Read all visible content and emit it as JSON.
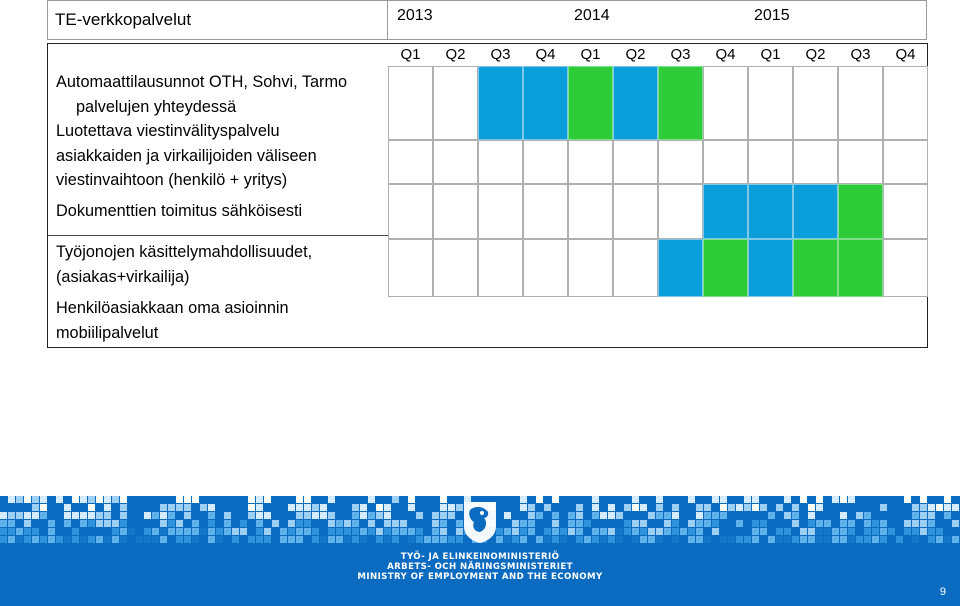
{
  "title": "TE-verkkopalvelut",
  "years": [
    "2013",
    "2014",
    "2015"
  ],
  "quarters": [
    "Q1",
    "Q2",
    "Q3",
    "Q4",
    "Q1",
    "Q2",
    "Q3",
    "Q4",
    "Q1",
    "Q2",
    "Q3",
    "Q4"
  ],
  "tasks": [
    {
      "lines": [
        "Automaattilausunnot OTH, Sohvi, Tarmo",
        "palvelujen yhteydessä",
        "Luotettava viestinvälityspalvelu",
        "asiakkaiden ja virkailijoiden väliseen",
        "viestinvaihtoon (henkilö + yritys)"
      ],
      "cells": [
        "",
        "",
        "blue",
        "blue",
        "green",
        "blue",
        "green",
        "",
        "",
        "",
        "",
        ""
      ]
    },
    {
      "lines": [
        "Dokumenttien toimitus sähköisesti"
      ],
      "cells": [
        "",
        "",
        "",
        "",
        "",
        "",
        "",
        "",
        "",
        "",
        "",
        ""
      ]
    },
    {
      "lines": [
        "Työjonojen käsittelymahdollisuudet,",
        "(asiakas+virkailija)"
      ],
      "cells": [
        "",
        "",
        "",
        "",
        "",
        "",
        "",
        "blue",
        "blue",
        "blue",
        "green",
        ""
      ]
    },
    {
      "lines": [
        "Henkilöasiakkaan oma asioinnin",
        "mobiilipalvelut"
      ],
      "cells": [
        "",
        "",
        "",
        "",
        "",
        "",
        "blue",
        "green",
        "blue",
        "green",
        "green",
        ""
      ]
    }
  ],
  "colors": {
    "blue": "#0a9edb",
    "green": "#2ecc39"
  },
  "footer": {
    "ministry_fi": "TYÖ- JA ELINKEINOMINISTERIÖ",
    "ministry_sv": "ARBETS- OCH NÄRINGSMINISTERIET",
    "ministry_en": "MINISTRY OF EMPLOYMENT AND THE ECONOMY",
    "logo_icon": "lion-coat-of-arms-icon"
  },
  "page_number": "9"
}
